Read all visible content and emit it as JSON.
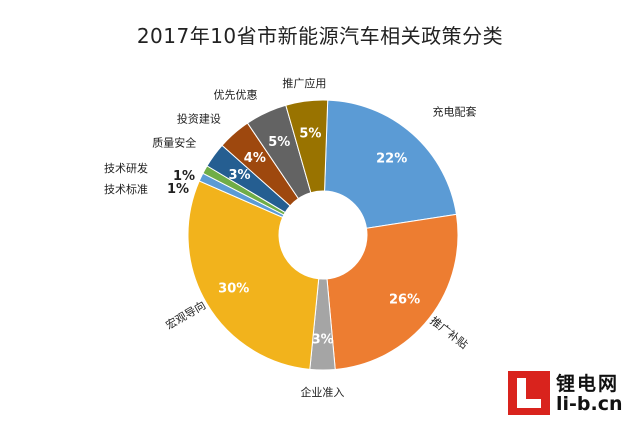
{
  "chart_data": {
    "type": "pie",
    "title": "2017年10省市新能源汽车相关政策分类",
    "donut": true,
    "slices": [
      {
        "label": "充电配套",
        "value": 22,
        "value_label": "22%",
        "color": "#5b9bd5"
      },
      {
        "label": "推广补贴",
        "value": 26,
        "value_label": "26%",
        "color": "#ed7d31"
      },
      {
        "label": "企业准入",
        "value": 3,
        "value_label": "3%",
        "color": "#a5a5a5"
      },
      {
        "label": "宏观导向",
        "value": 30,
        "value_label": "30%",
        "color": "#f2b31c"
      },
      {
        "label": "技术标准",
        "value": 1,
        "value_label": "1%",
        "color": "#5b9bd5"
      },
      {
        "label": "技术研发",
        "value": 1,
        "value_label": "1%",
        "color": "#70ad47"
      },
      {
        "label": "质量安全",
        "value": 3,
        "value_label": "3%",
        "color": "#255e91"
      },
      {
        "label": "投资建设",
        "value": 4,
        "value_label": "4%",
        "color": "#9e480e"
      },
      {
        "label": "优先优惠",
        "value": 5,
        "value_label": "5%",
        "color": "#636363"
      },
      {
        "label": "推广应用",
        "value": 5,
        "value_label": "5%",
        "color": "#997300"
      }
    ]
  },
  "watermark": {
    "name_cn": "锂电网",
    "domain": "li-b.cn"
  }
}
